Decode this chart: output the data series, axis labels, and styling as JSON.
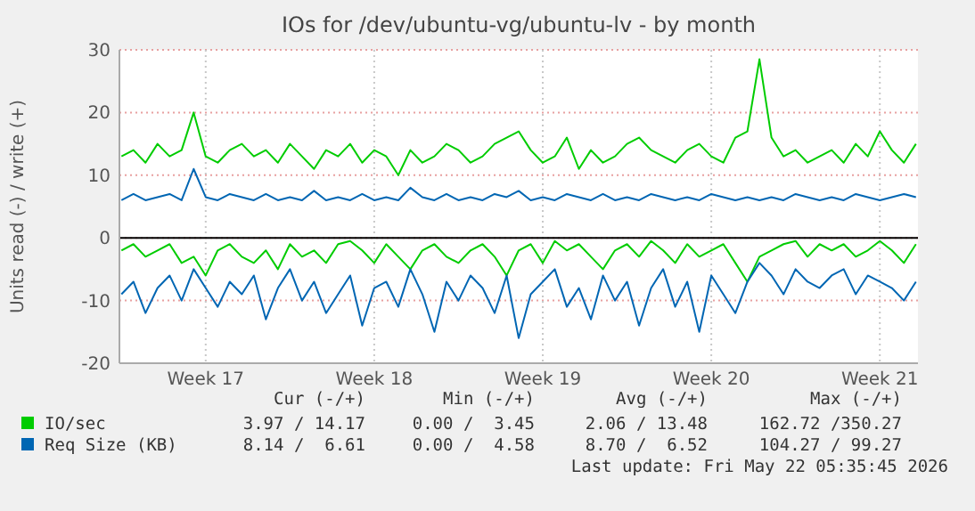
{
  "chart_data": {
    "type": "line",
    "title": "IOs for /dev/ubuntu-vg/ubuntu-lv - by month",
    "ylabel": "Units read (-) / write (+)",
    "x": [
      "2026-04-16T12:00",
      "2026-04-17T00:00",
      "2026-04-17T12:00",
      "2026-04-18T00:00",
      "2026-04-18T12:00",
      "2026-04-19T00:00",
      "2026-04-19T12:00",
      "2026-04-20T00:00",
      "2026-04-20T12:00",
      "2026-04-21T00:00",
      "2026-04-21T12:00",
      "2026-04-22T00:00",
      "2026-04-22T12:00",
      "2026-04-23T00:00",
      "2026-04-23T12:00",
      "2026-04-24T00:00",
      "2026-04-24T12:00",
      "2026-04-25T00:00",
      "2026-04-25T12:00",
      "2026-04-26T00:00",
      "2026-04-26T12:00",
      "2026-04-27T00:00",
      "2026-04-27T12:00",
      "2026-04-28T00:00",
      "2026-04-28T12:00",
      "2026-04-29T00:00",
      "2026-04-29T12:00",
      "2026-04-30T00:00",
      "2026-04-30T12:00",
      "2026-05-01T00:00",
      "2026-05-01T12:00",
      "2026-05-02T00:00",
      "2026-05-02T12:00",
      "2026-05-03T00:00",
      "2026-05-03T12:00",
      "2026-05-04T00:00",
      "2026-05-04T12:00",
      "2026-05-05T00:00",
      "2026-05-05T12:00",
      "2026-05-06T00:00",
      "2026-05-06T12:00",
      "2026-05-07T00:00",
      "2026-05-07T12:00",
      "2026-05-08T00:00",
      "2026-05-08T12:00",
      "2026-05-09T00:00",
      "2026-05-09T12:00",
      "2026-05-10T00:00",
      "2026-05-10T12:00",
      "2026-05-11T00:00",
      "2026-05-11T12:00",
      "2026-05-12T00:00",
      "2026-05-12T12:00",
      "2026-05-13T00:00",
      "2026-05-13T12:00",
      "2026-05-14T00:00",
      "2026-05-14T12:00",
      "2026-05-15T00:00",
      "2026-05-15T12:00",
      "2026-05-16T00:00",
      "2026-05-16T12:00",
      "2026-05-17T00:00",
      "2026-05-17T12:00",
      "2026-05-18T00:00",
      "2026-05-18T12:00",
      "2026-05-19T00:00",
      "2026-05-19T12:00"
    ],
    "xlim": [
      "2026-04-16T10:00",
      "2026-05-19T14:00"
    ],
    "xticks": [
      {
        "value": "2026-04-20",
        "label": "Week 17"
      },
      {
        "value": "2026-04-27",
        "label": "Week 18"
      },
      {
        "value": "2026-05-04",
        "label": "Week 19"
      },
      {
        "value": "2026-05-11",
        "label": "Week 20"
      },
      {
        "value": "2026-05-18",
        "label": "Week 21"
      }
    ],
    "ylim": [
      -20,
      30
    ],
    "yticks": [
      -20,
      -10,
      0,
      10,
      20,
      30
    ],
    "grid": true,
    "legend": "bottom",
    "line_style": "solid",
    "marker": "none",
    "series": [
      {
        "name": "IO/sec",
        "color": "#00cc00",
        "values": [
          13,
          14,
          12,
          15,
          13,
          14,
          20,
          13,
          12,
          14,
          15,
          13,
          14,
          12,
          15,
          13,
          11,
          14,
          13,
          15,
          12,
          14,
          13,
          10,
          14,
          12,
          13,
          15,
          14,
          12,
          13,
          15,
          16,
          17,
          14,
          12,
          13,
          16,
          11,
          14,
          12,
          13,
          15,
          16,
          14,
          13,
          12,
          14,
          15,
          13,
          12,
          16,
          17,
          28.5,
          16,
          13,
          14,
          12,
          13,
          14,
          12,
          15,
          13,
          17,
          14,
          12,
          15
        ]
      },
      {
        "name": "Req Size (KB)",
        "color": "#0066b3",
        "values": [
          6,
          7,
          6,
          6.5,
          7,
          6,
          11,
          6.5,
          6,
          7,
          6.5,
          6,
          7,
          6,
          6.5,
          6,
          7.5,
          6,
          6.5,
          6,
          7,
          6,
          6.5,
          6,
          8,
          6.5,
          6,
          7,
          6,
          6.5,
          6,
          7,
          6.5,
          7.5,
          6,
          6.5,
          6,
          7,
          6.5,
          6,
          7,
          6,
          6.5,
          6,
          7,
          6.5,
          6,
          6.5,
          6,
          7,
          6.5,
          6,
          6.5,
          6,
          6.5,
          6,
          7,
          6.5,
          6,
          6.5,
          6,
          7,
          6.5,
          6,
          6.5,
          7,
          6.5
        ]
      },
      {
        "color": "#00cc00",
        "values": [
          -2,
          -1,
          -3,
          -2,
          -1,
          -4,
          -3,
          -6,
          -2,
          -1,
          -3,
          -4,
          -2,
          -5,
          -1,
          -3,
          -2,
          -4,
          -1,
          -0.5,
          -2,
          -4,
          -1,
          -3,
          -5,
          -2,
          -1,
          -3,
          -4,
          -2,
          -1,
          -3,
          -6,
          -2,
          -1,
          -4,
          -0.5,
          -2,
          -1,
          -3,
          -5,
          -2,
          -1,
          -3,
          -0.5,
          -2,
          -4,
          -1,
          -3,
          -2,
          -1,
          -4,
          -7,
          -3,
          -2,
          -1,
          -0.5,
          -3,
          -1,
          -2,
          -1,
          -3,
          -2,
          -0.5,
          -2,
          -4,
          -1
        ]
      },
      {
        "color": "#0066b3",
        "values": [
          -9,
          -7,
          -12,
          -8,
          -6,
          -10,
          -5,
          -8,
          -11,
          -7,
          -9,
          -6,
          -13,
          -8,
          -5,
          -10,
          -7,
          -12,
          -9,
          -6,
          -14,
          -8,
          -7,
          -11,
          -5,
          -9,
          -15,
          -7,
          -10,
          -6,
          -8,
          -12,
          -6,
          -16,
          -9,
          -7,
          -5,
          -11,
          -8,
          -13,
          -6,
          -10,
          -7,
          -14,
          -8,
          -5,
          -11,
          -7,
          -15,
          -6,
          -9,
          -12,
          -7,
          -4,
          -6,
          -9,
          -5,
          -7,
          -8,
          -6,
          -5,
          -9,
          -6,
          -7,
          -8,
          -10,
          -7
        ]
      }
    ],
    "annotations": [
      "Cur (-/+)",
      "Min (-/+)",
      "Avg (-/+)",
      "Max (-/+)",
      "3.97 / 14.17",
      "0.00 /  3.45",
      "2.06 / 13.48",
      "162.72 /350.27",
      "8.14 /  6.61",
      "0.00 /  4.58",
      "8.70 /  6.52",
      "104.27 / 99.27",
      "Last update: Fri May 22 05:35:45 2026"
    ]
  }
}
